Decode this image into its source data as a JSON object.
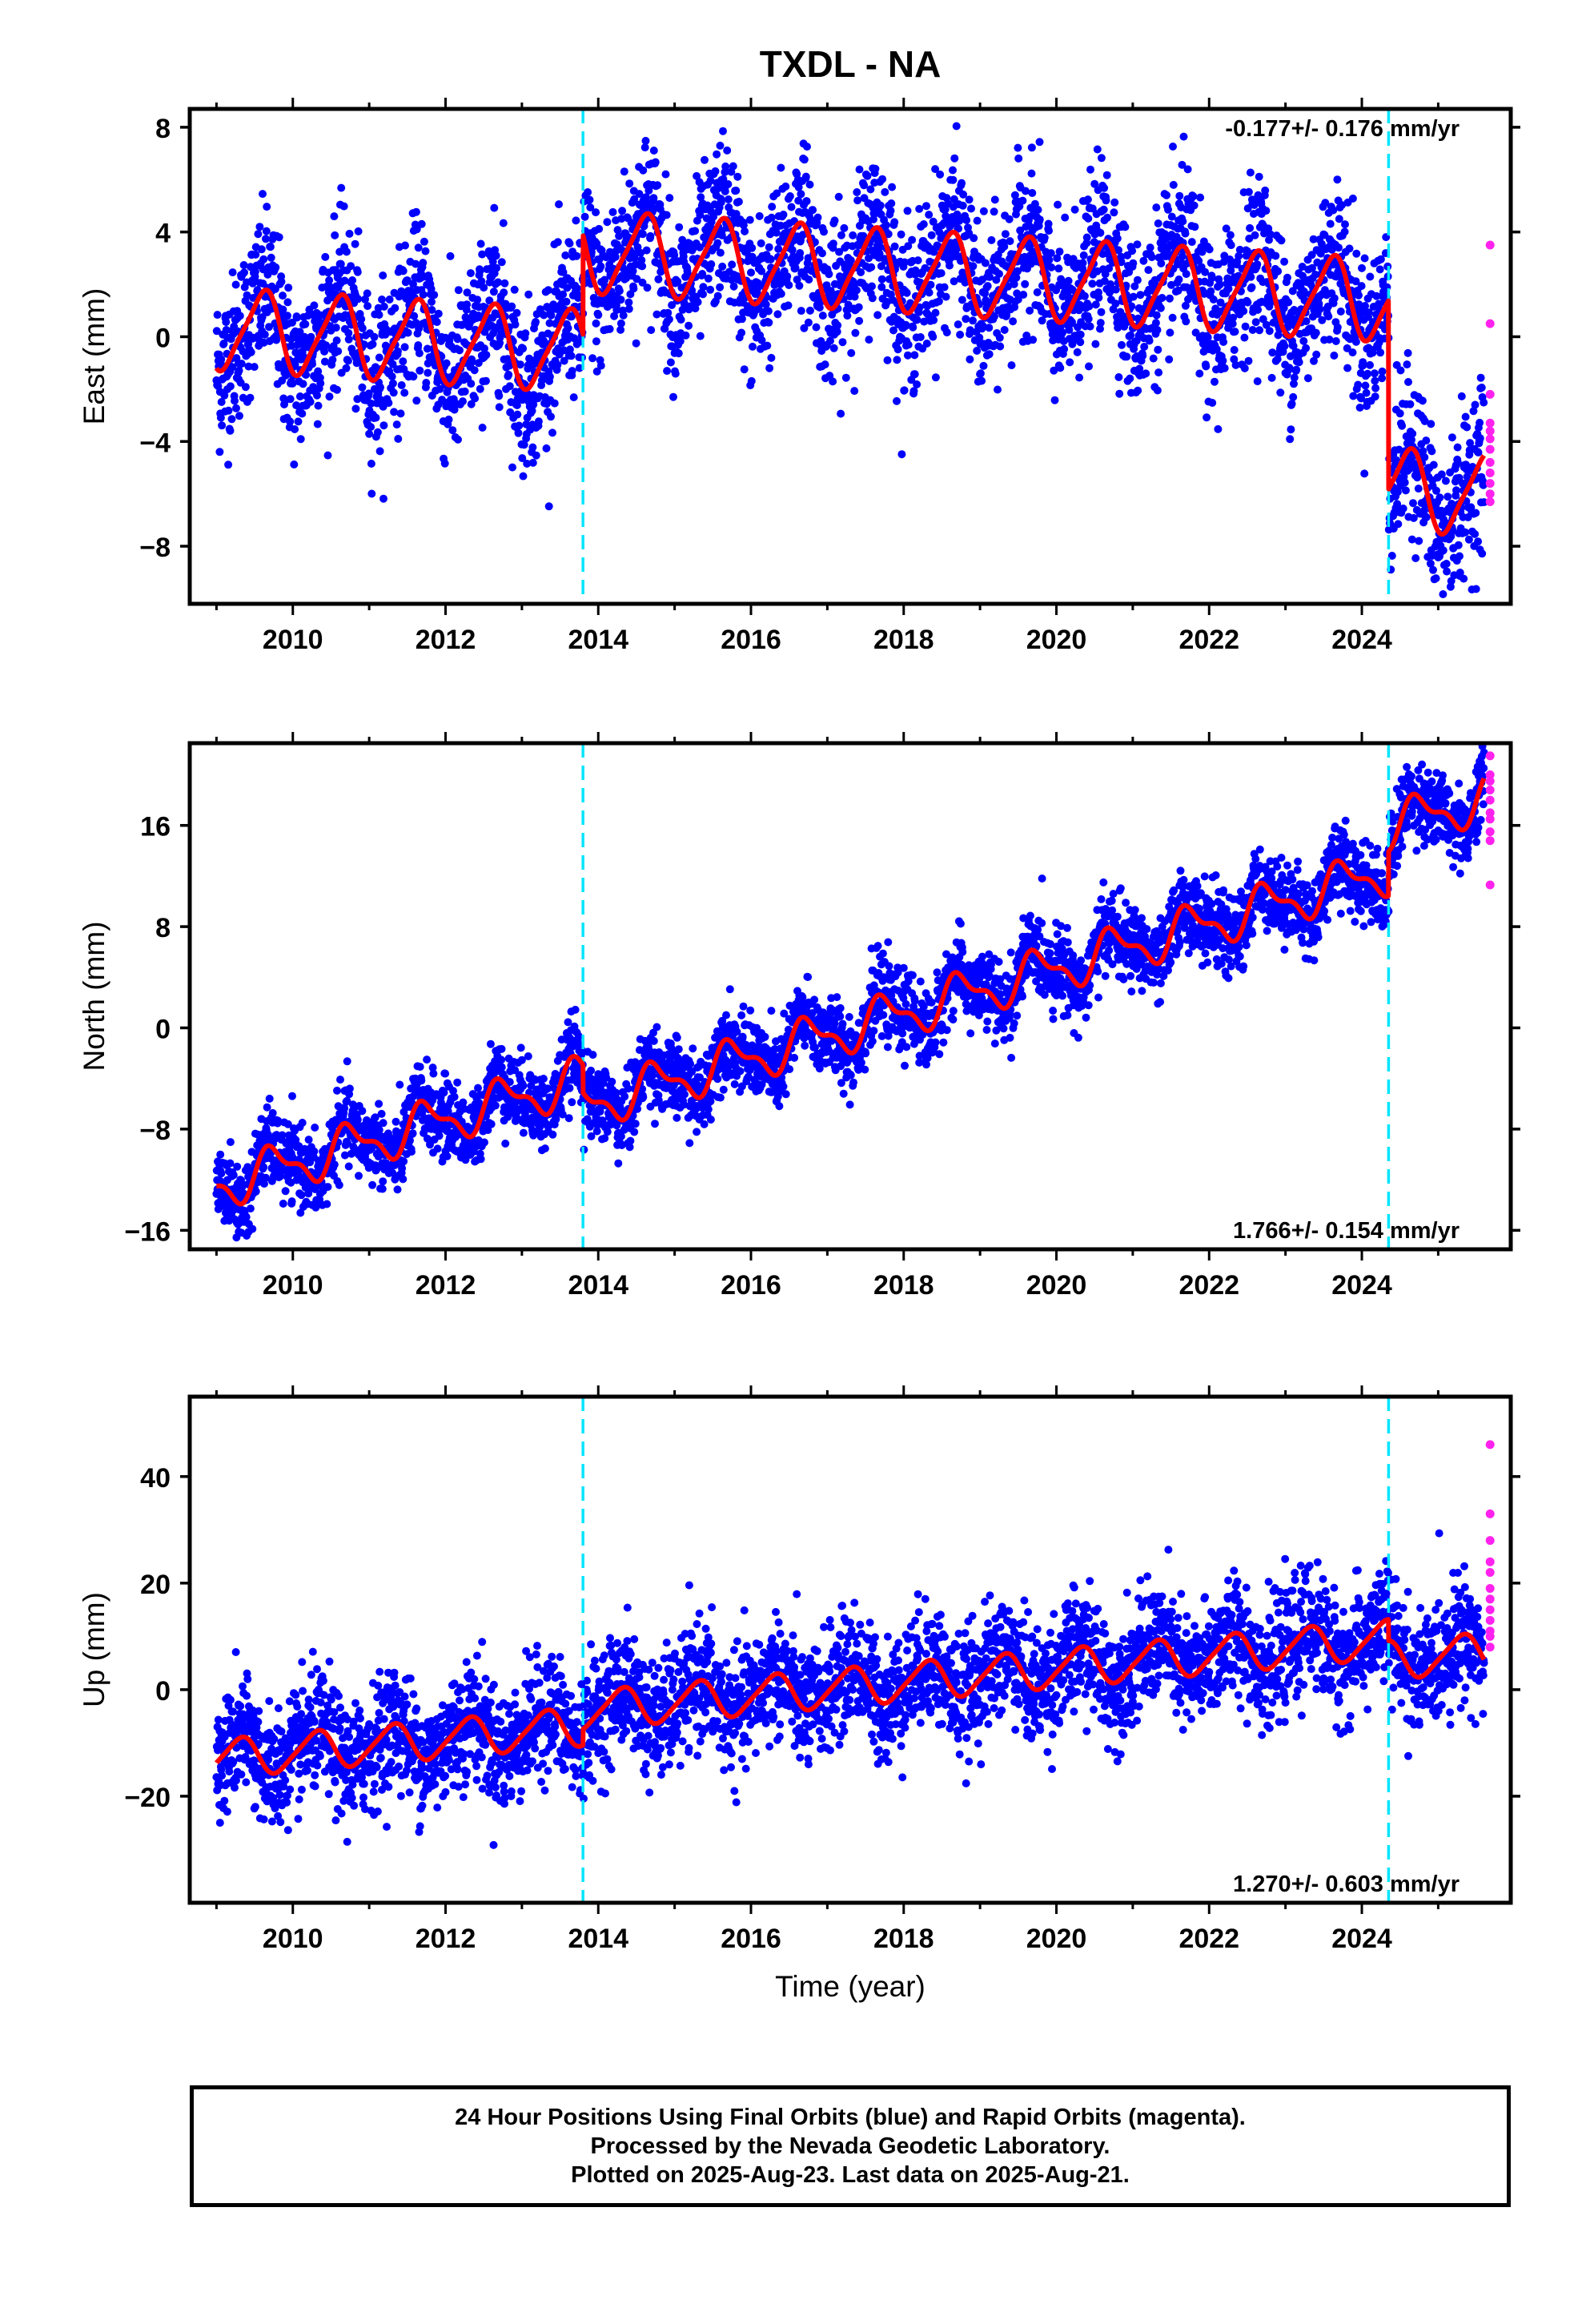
{
  "chart_data": [
    {
      "type": "scatter",
      "title": "TXDL - NA",
      "ylabel": "East (mm)",
      "rate_text": "-0.177+/- 0.176 mm/yr",
      "xlim": [
        2008.65,
        2025.95
      ],
      "ylim": [
        -10.2,
        8.7
      ],
      "yticks": [
        -8,
        -4,
        0,
        4,
        8
      ],
      "yticklabels": [
        "−8",
        "−4",
        "0",
        "4",
        "8"
      ],
      "xticks": [
        2010,
        2012,
        2014,
        2016,
        2018,
        2020,
        2022,
        2024
      ],
      "xticklabels": [
        "2010",
        "2012",
        "2014",
        "2016",
        "2018",
        "2020",
        "2022",
        "2024"
      ],
      "offsets": [
        2013.8,
        2024.35
      ],
      "model": {
        "start": 2009.0,
        "end": 2025.6,
        "trend": -0.177,
        "intercept": 0.3,
        "ref_year": 2009.0,
        "amp1": 1.5,
        "phase1": 0.35,
        "amp2": 0.3,
        "phase2": 0.1,
        "steps": [
          {
            "year": 2013.8,
            "value": 3.8
          },
          {
            "year": 2024.35,
            "value": -7.2
          }
        ]
      },
      "scatter_spread": 1.5,
      "rapid_orbit_values": [
        3.5,
        0.5,
        -2.2,
        -3.3,
        -3.6,
        -3.9,
        -4.3,
        -4.8,
        -5.2,
        -5.6,
        -6.0,
        -6.3
      ]
    },
    {
      "type": "scatter",
      "ylabel": "North (mm)",
      "rate_text": "1.766+/- 0.154 mm/yr",
      "xlim": [
        2008.65,
        2025.95
      ],
      "ylim": [
        -17.5,
        22.5
      ],
      "yticks": [
        -16,
        -8,
        0,
        8,
        16
      ],
      "yticklabels": [
        "−16",
        "−8",
        "0",
        "8",
        "16"
      ],
      "xticks": [
        2010,
        2012,
        2014,
        2016,
        2018,
        2020,
        2022,
        2024
      ],
      "xticklabels": [
        "2010",
        "2012",
        "2014",
        "2016",
        "2018",
        "2020",
        "2022",
        "2024"
      ],
      "offsets": [
        2013.8,
        2024.35
      ],
      "model": {
        "start": 2009.0,
        "end": 2025.6,
        "trend": 1.766,
        "intercept": -12.5,
        "ref_year": 2009.0,
        "amp1": 1.6,
        "phase1": 0.5,
        "amp2": 0.7,
        "phase2": 0.0,
        "steps": [
          {
            "year": 2013.8,
            "value": -2.2
          },
          {
            "year": 2024.35,
            "value": 3.5
          }
        ]
      },
      "scatter_spread": 1.5,
      "rapid_orbit_values": [
        21.5,
        20.0,
        19.5,
        18.8,
        18.0,
        17.0,
        16.5,
        15.5,
        14.8,
        11.3
      ]
    },
    {
      "type": "scatter",
      "ylabel": "Up (mm)",
      "xlabel": "Time (year)",
      "rate_text": "1.270+/- 0.603 mm/yr",
      "xlim": [
        2008.65,
        2025.95
      ],
      "ylim": [
        -40,
        55
      ],
      "yticks": [
        -20,
        0,
        20,
        40
      ],
      "yticklabels": [
        "−20",
        "0",
        "20",
        "40"
      ],
      "xticks": [
        2010,
        2012,
        2014,
        2016,
        2018,
        2020,
        2022,
        2024
      ],
      "xticklabels": [
        "2010",
        "2012",
        "2014",
        "2016",
        "2018",
        "2020",
        "2022",
        "2024"
      ],
      "offsets": [
        2013.8,
        2024.35
      ],
      "model": {
        "start": 2009.0,
        "end": 2025.6,
        "trend": 1.27,
        "intercept": -13.0,
        "ref_year": 2009.0,
        "amp1": 3.5,
        "phase1": 0.05,
        "amp2": 0.6,
        "phase2": 0.3,
        "steps": [
          {
            "year": 2013.8,
            "value": 3.0
          },
          {
            "year": 2024.35,
            "value": -4.0
          }
        ]
      },
      "scatter_spread": 5.5,
      "rapid_orbit_values": [
        46,
        33,
        28,
        24,
        22,
        19,
        17,
        15,
        13,
        11,
        10,
        8
      ]
    }
  ],
  "footer": {
    "line1": "24 Hour Positions Using Final Orbits (blue) and Rapid Orbits (magenta).",
    "line2": "Processed by the Nevada Geodetic Laboratory.",
    "line3": "Plotted on 2025-Aug-23. Last data on 2025-Aug-21."
  },
  "colors": {
    "final_orbit_points": "#0000ff",
    "rapid_orbit_points": "#ff22ee",
    "model_line": "#ff0000",
    "offset_line": "#00e5ff",
    "axis": "#000000"
  }
}
